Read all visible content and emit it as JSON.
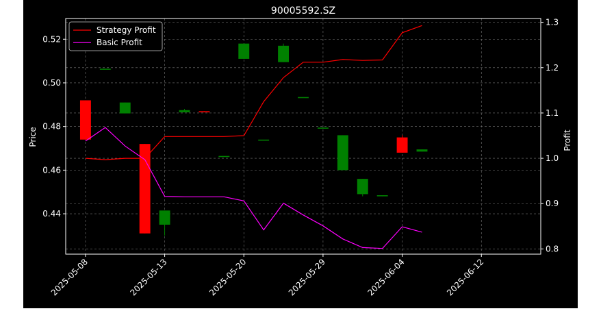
{
  "chart_data": {
    "type": "candlestick",
    "title": "90005592.SZ",
    "xlabel": "",
    "ylabel_left": "Price",
    "ylabel_right": "Profit",
    "ylim_left": [
      0.4215,
      0.5295
    ],
    "ylim_right": [
      0.7885,
      1.3085
    ],
    "yticks_left": [
      0.44,
      0.46,
      0.48,
      0.5,
      0.52
    ],
    "yticks_left_labels": [
      "0.44",
      "0.46",
      "0.48",
      "0.50",
      "0.52"
    ],
    "yticks_right": [
      0.8,
      0.9,
      1.0,
      1.1,
      1.2,
      1.3
    ],
    "yticks_right_labels": [
      "0.8",
      "0.9",
      "1.0",
      "1.1",
      "1.2",
      "1.3"
    ],
    "xlim": [
      -1,
      23
    ],
    "xticks": [
      0,
      4,
      8,
      12,
      16,
      20
    ],
    "xtick_labels": [
      "2025-05-08",
      "2025-05-13",
      "2025-05-20",
      "2025-05-29",
      "2025-06-04",
      "2025-06-12"
    ],
    "grid": true,
    "legend_position": "top-left",
    "background": "#000000",
    "text_color": "#ffffff",
    "up_color": "#008000",
    "down_color": "#ff0000",
    "candles": [
      {
        "i": 0,
        "open": 0.492,
        "high": 0.492,
        "low": 0.474,
        "close": 0.474
      },
      {
        "i": 1,
        "open": 0.5065,
        "high": 0.5065,
        "low": 0.5065,
        "close": 0.5065
      },
      {
        "i": 2,
        "open": 0.486,
        "high": 0.491,
        "low": 0.486,
        "close": 0.491
      },
      {
        "i": 3,
        "open": 0.472,
        "high": 0.472,
        "low": 0.431,
        "close": 0.431
      },
      {
        "i": 4,
        "open": 0.435,
        "high": 0.4415,
        "low": 0.43,
        "close": 0.4415
      },
      {
        "i": 5,
        "open": 0.4865,
        "high": 0.488,
        "low": 0.4865,
        "close": 0.4875
      },
      {
        "i": 6,
        "open": 0.487,
        "high": 0.487,
        "low": 0.4865,
        "close": 0.4865
      },
      {
        "i": 7,
        "open": 0.4665,
        "high": 0.4665,
        "low": 0.4665,
        "close": 0.4665
      },
      {
        "i": 8,
        "open": 0.511,
        "high": 0.518,
        "low": 0.511,
        "close": 0.518
      },
      {
        "i": 9,
        "open": 0.474,
        "high": 0.474,
        "low": 0.474,
        "close": 0.474
      },
      {
        "i": 10,
        "open": 0.5095,
        "high": 0.518,
        "low": 0.5095,
        "close": 0.517
      },
      {
        "i": 11,
        "open": 0.4935,
        "high": 0.4935,
        "low": 0.4935,
        "close": 0.4935
      },
      {
        "i": 12,
        "open": 0.4795,
        "high": 0.4795,
        "low": 0.4795,
        "close": 0.4795
      },
      {
        "i": 13,
        "open": 0.46,
        "high": 0.476,
        "low": 0.46,
        "close": 0.476
      },
      {
        "i": 14,
        "open": 0.449,
        "high": 0.456,
        "low": 0.448,
        "close": 0.456
      },
      {
        "i": 15,
        "open": 0.448,
        "high": 0.4485,
        "low": 0.448,
        "close": 0.4485
      },
      {
        "i": 16,
        "open": 0.475,
        "high": 0.476,
        "low": 0.468,
        "close": 0.468
      },
      {
        "i": 17,
        "open": 0.4685,
        "high": 0.4695,
        "low": 0.4685,
        "close": 0.4695
      }
    ],
    "series": [
      {
        "name": "Strategy Profit",
        "color": "#ff0000",
        "x": [
          0,
          1,
          2,
          3,
          4,
          5,
          6,
          7,
          8,
          9,
          10,
          11,
          12,
          13,
          14,
          15,
          16,
          17
        ],
        "values": [
          1.0,
          0.997,
          1.0,
          1.0,
          1.048,
          1.048,
          1.048,
          1.048,
          1.05,
          1.125,
          1.178,
          1.212,
          1.212,
          1.218,
          1.216,
          1.217,
          1.277,
          1.293
        ]
      },
      {
        "name": "Basic Profit",
        "color": "#ff00ff",
        "x": [
          0,
          1,
          2,
          3,
          4,
          5,
          6,
          7,
          8,
          9,
          10,
          11,
          12,
          13,
          14,
          15,
          16,
          17
        ],
        "values": [
          1.038,
          1.068,
          1.027,
          0.997,
          0.916,
          0.915,
          0.915,
          0.915,
          0.906,
          0.842,
          0.901,
          0.875,
          0.851,
          0.822,
          0.803,
          0.801,
          0.849,
          0.837
        ]
      }
    ]
  }
}
